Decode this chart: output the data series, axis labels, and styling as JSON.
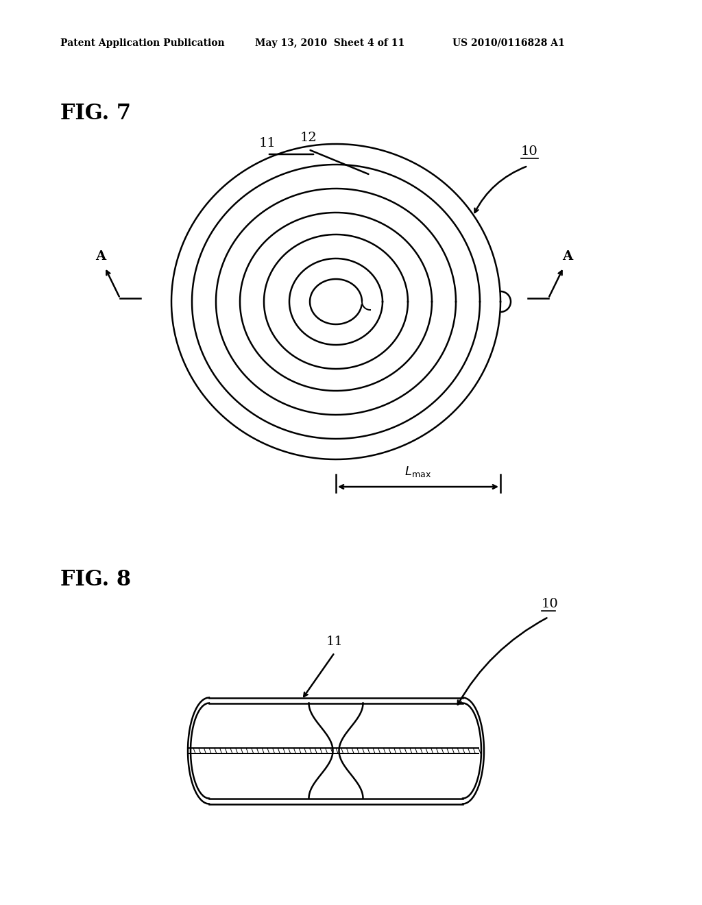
{
  "bg_color": "#ffffff",
  "header_text": "Patent Application Publication",
  "header_date": "May 13, 2010  Sheet 4 of 11",
  "header_patent": "US 2010/0116828 A1",
  "fig7_label": "FIG. 7",
  "fig8_label": "FIG. 8",
  "label_10": "10",
  "label_11": "11",
  "label_12": "12",
  "line_color": "#000000",
  "line_width": 1.8
}
